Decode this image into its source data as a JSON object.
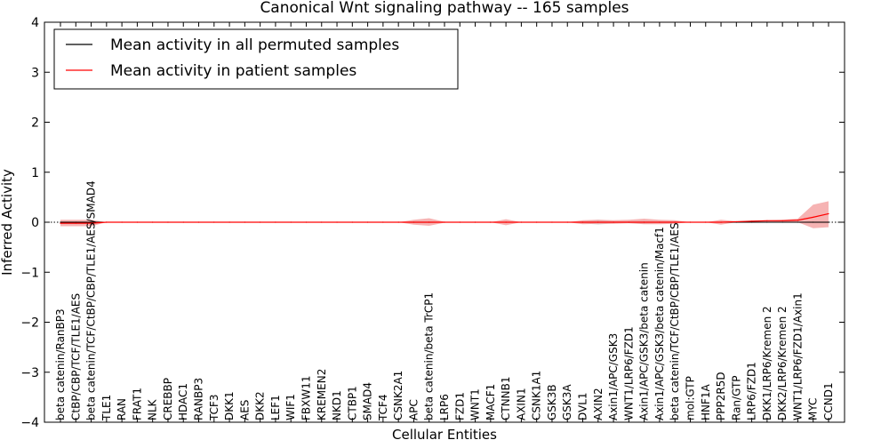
{
  "chart_data": {
    "type": "line",
    "title": "Canonical Wnt signaling pathway -- 165 samples",
    "xlabel": "Cellular Entities",
    "ylabel": "Inferred Activity",
    "ylim": [
      -4,
      4
    ],
    "yticks": [
      -4,
      -3,
      -2,
      -1,
      0,
      1,
      2,
      3,
      4
    ],
    "ytick_labels": [
      "−4",
      "−3",
      "−2",
      "−1",
      "0",
      "1",
      "2",
      "3",
      "4"
    ],
    "legend_position": "top-left",
    "categories": [
      "beta catenin/RanBP3",
      "CtBP/CBP/TCF/TLE1/AES",
      "beta catenin/TCF/CtBP/CBP/TLE1/AES/SMAD4",
      "TLE1",
      "RAN",
      "FRAT1",
      "NLK",
      "CREBBP",
      "HDAC1",
      "RANBP3",
      "TCF3",
      "DKK1",
      "AES",
      "DKK2",
      "LEF1",
      "WIF1",
      "FBXW11",
      "KREMEN2",
      "NKD1",
      "CTBP1",
      "SMAD4",
      "TCF4",
      "CSNK2A1",
      "APC",
      "beta catenin/beta TrCP1",
      "LRP6",
      "FZD1",
      "WNT1",
      "MACF1",
      "CTNNB1",
      "AXIN1",
      "CSNK1A1",
      "GSK3B",
      "GSK3A",
      "DVL1",
      "AXIN2",
      "Axin1/APC/GSK3",
      "WNT1/LRP6/FZD1",
      "Axin1/APC/GSK3/beta catenin",
      "Axin1/APC/GSK3/beta catenin/Macf1",
      "beta catenin/TCF/CtBP/CBP/TLE1/AES",
      "mol:GTP",
      "HNF1A",
      "PPP2R5D",
      "Ran/GTP",
      "LRP6/FZD1",
      "DKK1/LRP6/Kremen 2",
      "DKK2/LRP6/Kremen 2",
      "WNT1/LRP6/FZD1/Axin1",
      "MYC",
      "CCND1"
    ],
    "series": [
      {
        "name": "Mean activity in all permuted samples",
        "color": "#000000",
        "values": [
          0,
          0,
          0,
          0,
          0,
          0,
          0,
          0,
          0,
          0,
          0,
          0,
          0,
          0,
          0,
          0,
          0,
          0,
          0,
          0,
          0,
          0,
          0,
          0,
          0,
          0,
          0,
          0,
          0,
          0,
          0,
          0,
          0,
          0,
          0,
          0,
          0,
          0,
          0,
          0,
          0,
          0,
          0,
          0,
          0,
          0,
          0,
          0,
          0,
          0,
          0
        ],
        "band_low": [
          -0.02,
          -0.02,
          -0.02,
          0,
          0,
          0,
          0,
          0,
          0,
          0,
          0,
          0,
          0,
          0,
          0,
          0,
          0,
          0,
          0,
          0,
          0,
          0,
          0,
          -0.02,
          -0.02,
          0,
          0,
          0,
          0,
          -0.01,
          0,
          0,
          0,
          0,
          -0.02,
          -0.05,
          -0.02,
          -0.02,
          -0.03,
          -0.02,
          -0.02,
          0,
          0,
          -0.01,
          0,
          0,
          0,
          0,
          0,
          -0.02,
          -0.02
        ],
        "band_high": [
          0.02,
          0.02,
          0.02,
          0,
          0,
          0,
          0,
          0,
          0,
          0,
          0,
          0,
          0,
          0,
          0,
          0,
          0,
          0,
          0,
          0,
          0,
          0,
          0,
          0.02,
          0.02,
          0,
          0,
          0,
          0,
          0.01,
          0,
          0,
          0,
          0,
          0.02,
          0.05,
          0.02,
          0.02,
          0.03,
          0.02,
          0.02,
          0,
          0,
          0.01,
          0,
          0,
          0,
          0,
          0,
          0.02,
          0.02
        ]
      },
      {
        "name": "Mean activity in patient samples",
        "color": "#ff0000",
        "band_color": "#f08080",
        "values": [
          -0.02,
          -0.02,
          -0.02,
          0,
          0,
          0,
          0,
          0,
          0,
          0,
          0,
          0,
          0,
          0,
          0,
          0,
          0,
          0,
          0,
          0,
          0,
          0,
          0,
          0,
          0,
          0,
          0,
          0,
          0,
          0,
          0,
          0,
          0,
          0,
          0,
          0,
          0,
          0,
          0,
          0,
          0,
          0,
          0,
          0,
          0.01,
          0.02,
          0.03,
          0.03,
          0.04,
          0.1,
          0.17
        ],
        "band_low": [
          -0.08,
          -0.08,
          -0.08,
          0,
          0,
          0,
          0,
          0,
          0,
          0,
          0,
          0,
          0,
          0,
          0,
          0,
          0,
          0,
          0,
          0,
          0,
          0,
          0,
          -0.05,
          -0.07,
          -0.01,
          0,
          0,
          0,
          -0.06,
          0,
          0,
          0,
          0,
          -0.04,
          -0.03,
          -0.03,
          -0.02,
          -0.04,
          -0.04,
          -0.03,
          0,
          0,
          -0.05,
          0,
          0,
          0,
          0,
          0,
          -0.12,
          -0.1
        ],
        "band_high": [
          0.05,
          0.05,
          0.05,
          0,
          0,
          0,
          0,
          0,
          0,
          0,
          0,
          0,
          0,
          0,
          0,
          0,
          0,
          0,
          0,
          0,
          0,
          0,
          0,
          0.05,
          0.08,
          0.01,
          0,
          0,
          0,
          0.06,
          0,
          0,
          0,
          0,
          0.04,
          0.05,
          0.04,
          0.05,
          0.07,
          0.05,
          0.04,
          0,
          0,
          0.05,
          0.02,
          0.03,
          0.04,
          0.05,
          0.07,
          0.35,
          0.42
        ]
      }
    ]
  }
}
